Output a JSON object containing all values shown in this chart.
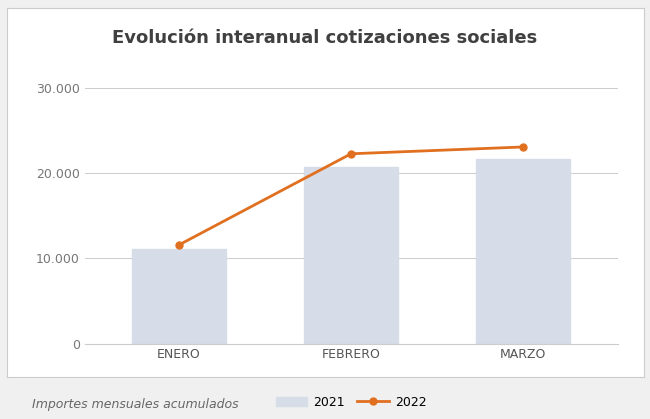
{
  "title": "Evolución interanual cotizaciones sociales",
  "categories": [
    "ENERO",
    "FEBRERO",
    "MARZO"
  ],
  "bar_values_2021": [
    11100,
    20800,
    21700
  ],
  "line_values_2022": [
    11600,
    22300,
    23100
  ],
  "bar_color": "#d6dce8",
  "line_color": "#e07020",
  "ylim": [
    0,
    32000
  ],
  "yticks": [
    0,
    10000,
    20000,
    30000
  ],
  "ytick_labels": [
    "0",
    "10.000",
    "20.000",
    "30.000"
  ],
  "legend_bar_label": "2021",
  "legend_line_label": "2022",
  "subtitle": "Importes mensuales acumulados",
  "background_color": "#f0f0f0",
  "plot_bg_color": "#ffffff",
  "title_fontsize": 13,
  "subtitle_fontsize": 9,
  "tick_fontsize": 9,
  "legend_fontsize": 9,
  "bar_width": 0.55
}
